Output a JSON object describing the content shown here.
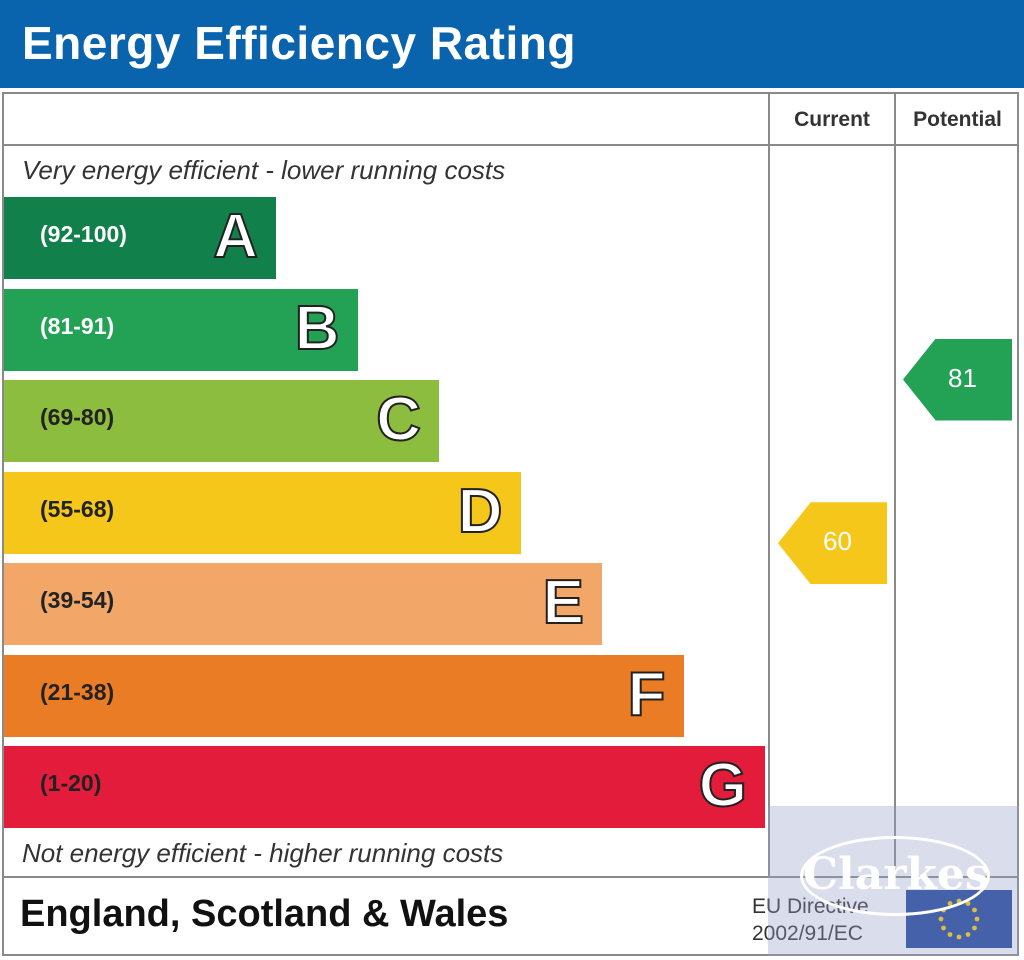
{
  "header": {
    "title": "Energy Efficiency Rating"
  },
  "columns": {
    "current": "Current",
    "potential": "Potential"
  },
  "notes": {
    "top": "Very energy efficient - lower running costs",
    "bottom": "Not energy efficient - higher running costs"
  },
  "footer": {
    "region": "England, Scotland & Wales",
    "directive_line1": "EU Directive",
    "directive_line2": "2002/91/EC"
  },
  "watermark": {
    "logo": "Clarkes"
  },
  "colors": {
    "header": "#0a63ad",
    "A": "#12804a",
    "B": "#23a256",
    "C": "#8cbd3f",
    "D": "#f5c71a",
    "E": "#f2a769",
    "F": "#eb7c26",
    "G": "#e21c3a"
  },
  "chart_data": {
    "type": "bar",
    "title": "Energy Efficiency Rating",
    "categories": [
      "A",
      "B",
      "C",
      "D",
      "E",
      "F",
      "G"
    ],
    "bands": [
      {
        "letter": "A",
        "range": "(92-100)",
        "min": 92,
        "max": 100,
        "color": "#12804a"
      },
      {
        "letter": "B",
        "range": "(81-91)",
        "min": 81,
        "max": 91,
        "color": "#23a256"
      },
      {
        "letter": "C",
        "range": "(69-80)",
        "min": 69,
        "max": 80,
        "color": "#8cbd3f"
      },
      {
        "letter": "D",
        "range": "(55-68)",
        "min": 55,
        "max": 68,
        "color": "#f5c71a"
      },
      {
        "letter": "E",
        "range": "(39-54)",
        "min": 39,
        "max": 54,
        "color": "#f2a769"
      },
      {
        "letter": "F",
        "range": "(21-38)",
        "min": 21,
        "max": 38,
        "color": "#eb7c26"
      },
      {
        "letter": "G",
        "range": "(1-20)",
        "min": 1,
        "max": 20,
        "color": "#e21c3a"
      }
    ],
    "current": {
      "value": 60,
      "band": "D",
      "color": "#f5c71a"
    },
    "potential": {
      "value": 81,
      "band": "B",
      "color": "#23a256"
    }
  }
}
